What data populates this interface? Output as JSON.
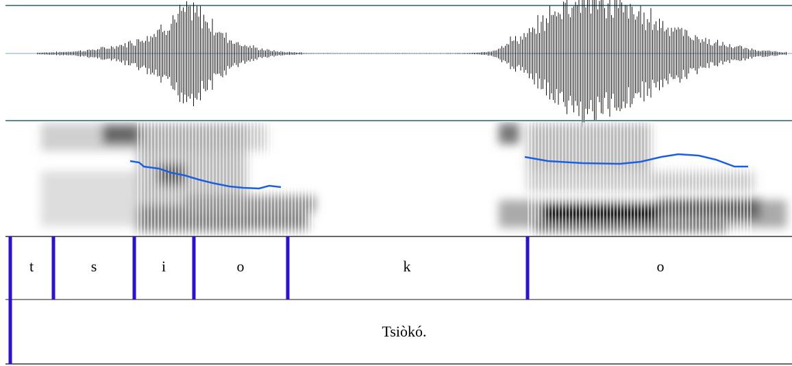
{
  "segment_tier": {
    "labels": [
      "t",
      "s",
      "i",
      "o",
      "k",
      "o"
    ]
  },
  "word_tier": {
    "label": "Tsiòkó."
  }
}
